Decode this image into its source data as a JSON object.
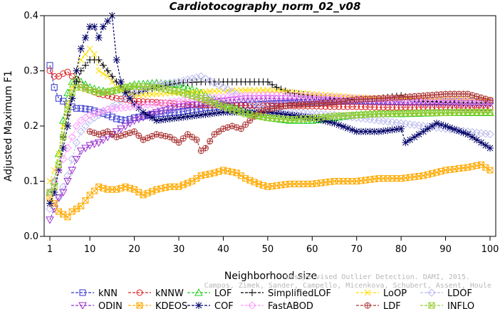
{
  "chart_data": {
    "type": "line",
    "title": "Cardiotocography_norm_02_v08",
    "xlabel": "Neighborhood size",
    "ylabel": "Adjusted Maximum F1",
    "xlim": [
      1,
      100
    ],
    "ylim": [
      0.0,
      0.4
    ],
    "xticks": [
      1,
      10,
      20,
      30,
      40,
      50,
      60,
      70,
      80,
      90,
      100
    ],
    "yticks": [
      0.0,
      0.1,
      0.2,
      0.3,
      0.4
    ],
    "ytick_labels": [
      "0.0",
      "0.1",
      "0.2",
      "0.3",
      "0.4"
    ],
    "grid": false,
    "legend_position": "bottom",
    "watermark": [
      "Campos, Zimek, Sander, Campello, Micenkova, Schubert, Assent, Houle",
      "Unsupervised Outlier Detection. DAMI, 2015."
    ],
    "series": [
      {
        "name": "kNN",
        "color": "#3333cc",
        "marker": "square",
        "x": [
          1,
          2,
          3,
          4,
          5,
          6,
          7,
          8,
          10,
          12,
          14,
          16,
          18,
          20,
          25,
          30,
          35,
          40,
          45,
          50,
          55,
          60,
          65,
          70,
          75,
          80,
          85,
          90,
          95,
          100
        ],
        "y": [
          0.31,
          0.27,
          0.25,
          0.245,
          0.24,
          0.235,
          0.232,
          0.232,
          0.23,
          0.225,
          0.22,
          0.213,
          0.21,
          0.215,
          0.222,
          0.225,
          0.232,
          0.236,
          0.238,
          0.24,
          0.242,
          0.243,
          0.244,
          0.245,
          0.245,
          0.244,
          0.244,
          0.245,
          0.245,
          0.245
        ]
      },
      {
        "name": "kNNW",
        "color": "#dd2222",
        "marker": "circle",
        "x": [
          1,
          2,
          3,
          4,
          5,
          6,
          7,
          8,
          10,
          12,
          14,
          16,
          18,
          20,
          25,
          30,
          35,
          40,
          45,
          50,
          55,
          60,
          65,
          70,
          75,
          80,
          85,
          90,
          95,
          100
        ],
        "y": [
          0.3,
          0.29,
          0.29,
          0.295,
          0.298,
          0.29,
          0.285,
          0.275,
          0.265,
          0.258,
          0.255,
          0.25,
          0.248,
          0.245,
          0.243,
          0.24,
          0.238,
          0.238,
          0.237,
          0.237,
          0.236,
          0.236,
          0.235,
          0.235,
          0.234,
          0.234,
          0.234,
          0.234,
          0.233,
          0.233
        ]
      },
      {
        "name": "LOF",
        "color": "#22cc22",
        "marker": "triangle",
        "x": [
          1,
          2,
          3,
          4,
          5,
          6,
          7,
          8,
          10,
          12,
          14,
          16,
          18,
          20,
          25,
          30,
          35,
          40,
          45,
          50,
          55,
          60,
          65,
          70,
          75,
          80,
          85,
          90,
          95,
          100
        ],
        "y": [
          0.08,
          0.1,
          0.15,
          0.21,
          0.26,
          0.28,
          0.285,
          0.28,
          0.27,
          0.265,
          0.262,
          0.265,
          0.27,
          0.275,
          0.278,
          0.275,
          0.26,
          0.24,
          0.225,
          0.215,
          0.21,
          0.21,
          0.215,
          0.22,
          0.222,
          0.222,
          0.223,
          0.224,
          0.224,
          0.224
        ]
      },
      {
        "name": "SimplifiedLOF",
        "color": "#000000",
        "marker": "plus",
        "x": [
          1,
          2,
          3,
          4,
          5,
          6,
          7,
          8,
          10,
          12,
          14,
          16,
          18,
          20,
          25,
          30,
          35,
          40,
          45,
          50,
          52,
          55,
          60,
          65,
          70,
          75,
          80,
          85,
          90,
          95,
          100
        ],
        "y": [
          0.06,
          0.08,
          0.12,
          0.18,
          0.22,
          0.25,
          0.28,
          0.3,
          0.32,
          0.32,
          0.3,
          0.28,
          0.265,
          0.258,
          0.27,
          0.278,
          0.28,
          0.28,
          0.28,
          0.28,
          0.27,
          0.26,
          0.255,
          0.25,
          0.248,
          0.25,
          0.255,
          0.245,
          0.243,
          0.242,
          0.242
        ]
      },
      {
        "name": "LoOP",
        "color": "#ffdd00",
        "marker": "x",
        "x": [
          1,
          2,
          3,
          4,
          5,
          6,
          7,
          8,
          10,
          11,
          12,
          14,
          16,
          18,
          20,
          25,
          30,
          35,
          40,
          45,
          50,
          55,
          60,
          65,
          70,
          75,
          80,
          85,
          90,
          95,
          100
        ],
        "y": [
          0.1,
          0.12,
          0.15,
          0.2,
          0.24,
          0.27,
          0.3,
          0.32,
          0.34,
          0.33,
          0.3,
          0.29,
          0.27,
          0.26,
          0.255,
          0.258,
          0.26,
          0.262,
          0.264,
          0.265,
          0.265,
          0.262,
          0.258,
          0.255,
          0.252,
          0.25,
          0.25,
          0.25,
          0.248,
          0.248,
          0.248
        ]
      },
      {
        "name": "LDOF",
        "color": "#bbbbee",
        "marker": "diamond",
        "x": [
          1,
          2,
          3,
          4,
          5,
          6,
          7,
          8,
          10,
          12,
          14,
          16,
          18,
          20,
          25,
          30,
          35,
          40,
          45,
          50,
          55,
          60,
          65,
          70,
          75,
          80,
          85,
          90,
          95,
          100
        ],
        "y": [
          0.05,
          0.055,
          0.07,
          0.09,
          0.11,
          0.14,
          0.17,
          0.19,
          0.21,
          0.22,
          0.23,
          0.24,
          0.25,
          0.26,
          0.275,
          0.28,
          0.29,
          0.27,
          0.25,
          0.23,
          0.225,
          0.222,
          0.22,
          0.215,
          0.21,
          0.205,
          0.2,
          0.195,
          0.19,
          0.185
        ]
      },
      {
        "name": "ODIN",
        "color": "#9933cc",
        "marker": "triangle-down",
        "x": [
          1,
          2,
          3,
          4,
          5,
          6,
          7,
          8,
          10,
          12,
          14,
          16,
          18,
          20,
          25,
          30,
          35,
          40,
          45,
          50,
          55,
          60,
          65,
          70,
          75,
          80,
          85,
          90,
          95,
          100
        ],
        "y": [
          0.03,
          0.05,
          0.07,
          0.08,
          0.1,
          0.12,
          0.14,
          0.155,
          0.165,
          0.17,
          0.18,
          0.19,
          0.2,
          0.21,
          0.225,
          0.235,
          0.24,
          0.245,
          0.25,
          0.25,
          0.25,
          0.248,
          0.246,
          0.245,
          0.244,
          0.243,
          0.242,
          0.242,
          0.241,
          0.241
        ]
      },
      {
        "name": "KDEOS",
        "color": "#ffaa00",
        "marker": "square-x",
        "x": [
          1,
          2,
          3,
          4,
          5,
          6,
          7,
          8,
          10,
          12,
          14,
          16,
          18,
          20,
          22,
          25,
          28,
          30,
          33,
          35,
          38,
          40,
          43,
          45,
          48,
          50,
          55,
          60,
          65,
          70,
          75,
          80,
          85,
          90,
          95,
          98,
          100
        ],
        "y": [
          0.07,
          0.06,
          0.045,
          0.04,
          0.035,
          0.045,
          0.05,
          0.055,
          0.075,
          0.09,
          0.085,
          0.085,
          0.09,
          0.085,
          0.075,
          0.085,
          0.09,
          0.09,
          0.1,
          0.11,
          0.115,
          0.12,
          0.115,
          0.105,
          0.095,
          0.09,
          0.095,
          0.095,
          0.1,
          0.1,
          0.105,
          0.105,
          0.11,
          0.12,
          0.125,
          0.13,
          0.12
        ]
      },
      {
        "name": "COF",
        "color": "#000066",
        "marker": "star",
        "x": [
          1,
          2,
          3,
          4,
          5,
          6,
          7,
          8,
          9,
          10,
          11,
          12,
          13,
          14,
          15,
          16,
          17,
          18,
          20,
          22,
          25,
          30,
          35,
          40,
          45,
          50,
          55,
          60,
          65,
          70,
          75,
          80,
          81,
          85,
          88,
          90,
          95,
          100
        ],
        "y": [
          0.06,
          0.08,
          0.12,
          0.16,
          0.2,
          0.25,
          0.3,
          0.34,
          0.36,
          0.38,
          0.38,
          0.36,
          0.38,
          0.39,
          0.4,
          0.32,
          0.28,
          0.26,
          0.24,
          0.225,
          0.21,
          0.215,
          0.22,
          0.225,
          0.225,
          0.225,
          0.22,
          0.215,
          0.205,
          0.19,
          0.19,
          0.195,
          0.17,
          0.19,
          0.205,
          0.2,
          0.185,
          0.16
        ]
      },
      {
        "name": "FastABOD",
        "color": "#ff99ff",
        "marker": "diamond",
        "x": [
          1,
          2,
          3,
          4,
          5,
          6,
          7,
          8,
          10,
          12,
          14,
          16,
          18,
          20,
          25,
          30,
          35,
          40,
          45,
          50,
          55,
          60,
          65,
          70,
          75,
          80,
          85,
          90,
          95,
          100
        ],
        "y": [
          0.08,
          0.1,
          0.12,
          0.14,
          0.16,
          0.18,
          0.2,
          0.21,
          0.22,
          0.225,
          0.23,
          0.232,
          0.234,
          0.236,
          0.24,
          0.245,
          0.25,
          0.252,
          0.255,
          0.256,
          0.255,
          0.254,
          0.252,
          0.25,
          0.249,
          0.248,
          0.247,
          0.246,
          0.245,
          0.245
        ]
      },
      {
        "name": "LDF",
        "color": "#aa3333",
        "marker": "circle-plus",
        "x": [
          10,
          12,
          14,
          16,
          18,
          20,
          22,
          25,
          28,
          30,
          32,
          34,
          35,
          36,
          38,
          40,
          42,
          44,
          46,
          48,
          50,
          55,
          60,
          65,
          70,
          75,
          80,
          85,
          90,
          95,
          100
        ],
        "y": [
          0.19,
          0.185,
          0.19,
          0.18,
          0.185,
          0.19,
          0.175,
          0.185,
          0.18,
          0.17,
          0.185,
          0.175,
          0.155,
          0.16,
          0.185,
          0.195,
          0.2,
          0.195,
          0.21,
          0.225,
          0.23,
          0.238,
          0.24,
          0.243,
          0.248,
          0.25,
          0.252,
          0.255,
          0.258,
          0.258,
          0.247
        ]
      },
      {
        "name": "INFLO",
        "color": "#99cc33",
        "marker": "square-x",
        "x": [
          1,
          2,
          3,
          4,
          5,
          6,
          7,
          8,
          10,
          12,
          14,
          16,
          18,
          20,
          25,
          30,
          35,
          40,
          45,
          50,
          55,
          60,
          65,
          70,
          75,
          80,
          85,
          90,
          95,
          100
        ],
        "y": [
          0.08,
          0.09,
          0.13,
          0.18,
          0.23,
          0.26,
          0.27,
          0.27,
          0.265,
          0.26,
          0.262,
          0.265,
          0.27,
          0.272,
          0.27,
          0.262,
          0.25,
          0.235,
          0.222,
          0.215,
          0.212,
          0.214,
          0.218,
          0.22,
          0.222,
          0.223,
          0.224,
          0.224,
          0.225,
          0.225
        ]
      }
    ]
  }
}
